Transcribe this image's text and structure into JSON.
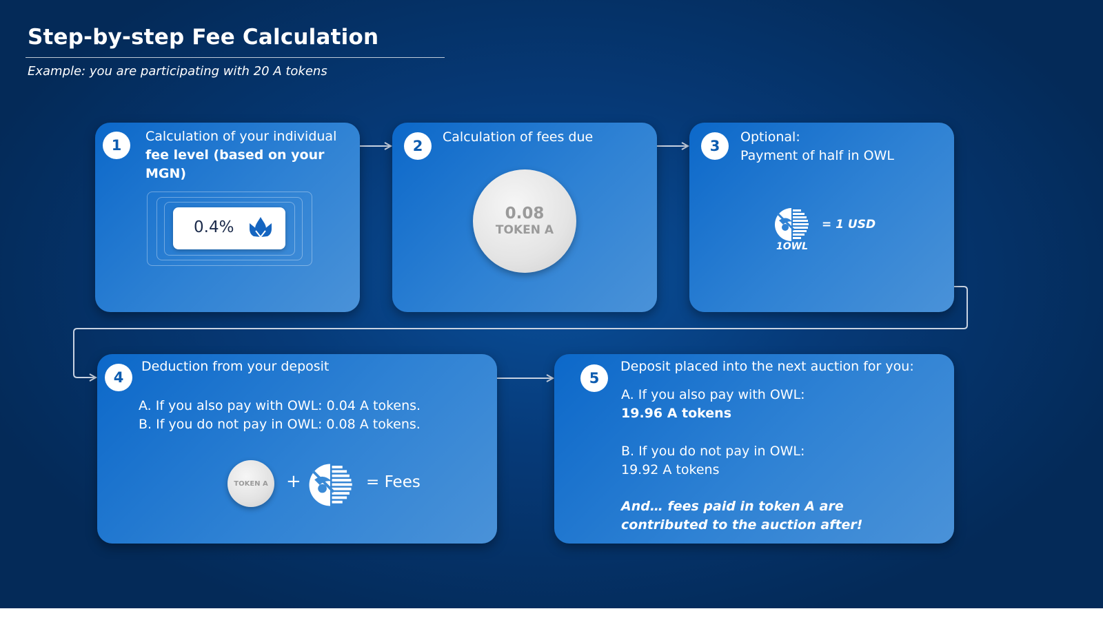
{
  "header": {
    "title": "Step-by-step Fee Calculation",
    "subtitle": "Example: you are participating with 20 A tokens"
  },
  "steps": [
    {
      "number": "1",
      "title_line1": "Calculation of your individual",
      "title_bold": "fee level (based on your MGN)",
      "fee_value": "0.4%"
    },
    {
      "number": "2",
      "title": "Calculation of fees due",
      "coin_value": "0.08",
      "coin_label": "TOKEN A"
    },
    {
      "number": "3",
      "title_line1": "Optional:",
      "title_line2": "Payment of half in OWL",
      "owl_rate": "=  1 USD",
      "owl_caption": "1OWL"
    },
    {
      "number": "4",
      "title": "Deduction from your deposit",
      "line_a": "A. If you also pay with OWL: 0.04 A tokens.",
      "line_b": "B. If you do not pay in OWL: 0.08 A tokens.",
      "coin_label": "TOKEN A",
      "plus": "+",
      "equals_label": "= Fees"
    },
    {
      "number": "5",
      "title": "Deposit placed into the next auction for you:",
      "a_label": "A. If you also pay with OWL:",
      "a_value": "19.96 A tokens",
      "b_label": "B. If you do not pay in OWL:",
      "b_value": "19.92 A tokens",
      "note": "And… fees paid in token A are contributed to the auction after!"
    }
  ],
  "colors": {
    "background": "#052f63",
    "card": "#2f82d4",
    "badge_text": "#0d5cb0",
    "coin": "#e4e4e4",
    "mgn_logo": "#1565c0"
  },
  "icons": [
    "mgn-logo-icon",
    "owl-logo-icon",
    "arrow-right-icon"
  ]
}
